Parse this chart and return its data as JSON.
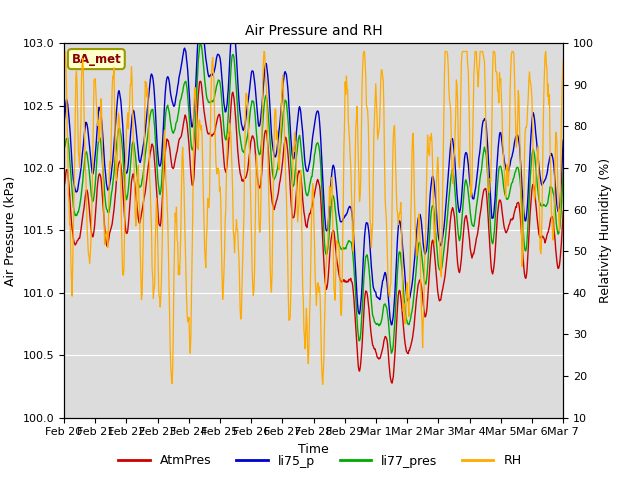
{
  "title": "Air Pressure and RH",
  "ylabel_left": "Air Pressure (kPa)",
  "ylabel_right": "Relativity Humidity (%)",
  "xlabel": "Time",
  "annotation_text": "BA_met",
  "ylim_left": [
    100.0,
    103.0
  ],
  "ylim_right": [
    10,
    100
  ],
  "yticks_left": [
    100.0,
    100.5,
    101.0,
    101.5,
    102.0,
    102.5,
    103.0
  ],
  "yticks_right": [
    10,
    20,
    30,
    40,
    50,
    60,
    70,
    80,
    90,
    100
  ],
  "bg_color": "#dcdcdc",
  "fig_color": "#ffffff",
  "colors": {
    "AtmPres": "#cc0000",
    "li75_p": "#0000cc",
    "li77_pres": "#00aa00",
    "RH": "#ffaa00"
  },
  "legend_labels": [
    "AtmPres",
    "li75_p",
    "li77_pres",
    "RH"
  ],
  "n_points": 800
}
